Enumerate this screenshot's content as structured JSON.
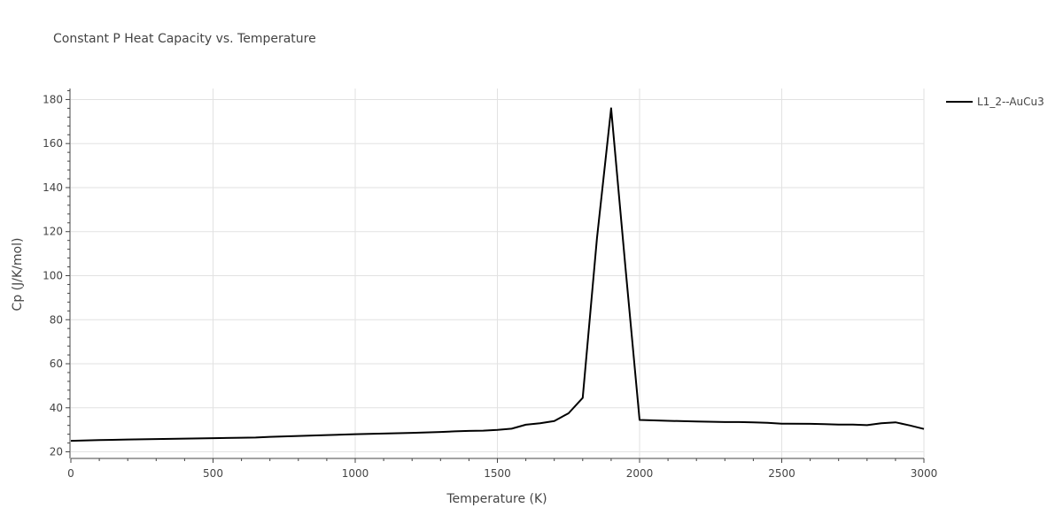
{
  "chart_data": {
    "type": "line",
    "title": "Constant P Heat Capacity vs. Temperature",
    "xlabel": "Temperature (K)",
    "ylabel": "Cp (J/K/mol)",
    "xlim": [
      0,
      3000
    ],
    "ylim": [
      17,
      185
    ],
    "x_ticks": [
      0,
      500,
      1000,
      1500,
      2000,
      2500,
      3000
    ],
    "y_ticks": [
      20,
      40,
      60,
      80,
      100,
      120,
      140,
      160,
      180
    ],
    "grid": true,
    "legend_position": "top-right",
    "series": [
      {
        "name": "L1_2--AuCu3",
        "color": "#000000",
        "x": [
          0,
          100,
          200,
          300,
          400,
          500,
          600,
          650,
          700,
          800,
          900,
          1000,
          1100,
          1200,
          1300,
          1350,
          1400,
          1450,
          1500,
          1550,
          1600,
          1650,
          1700,
          1750,
          1800,
          1850,
          1900,
          1950,
          2000,
          2100,
          2200,
          2300,
          2350,
          2400,
          2450,
          2500,
          2600,
          2650,
          2700,
          2750,
          2800,
          2850,
          2900,
          2950,
          3000
        ],
        "y": [
          25.0,
          25.3,
          25.6,
          25.8,
          26.0,
          26.2,
          26.4,
          26.5,
          26.8,
          27.2,
          27.6,
          28.0,
          28.3,
          28.6,
          29.0,
          29.3,
          29.5,
          29.6,
          30.0,
          30.5,
          32.3,
          33.0,
          34.0,
          37.5,
          44.5,
          117.0,
          176.0,
          104.0,
          34.5,
          34.1,
          33.8,
          33.5,
          33.5,
          33.4,
          33.2,
          32.8,
          32.7,
          32.6,
          32.4,
          32.4,
          32.1,
          33.0,
          33.4,
          32.0,
          30.4
        ]
      }
    ]
  }
}
